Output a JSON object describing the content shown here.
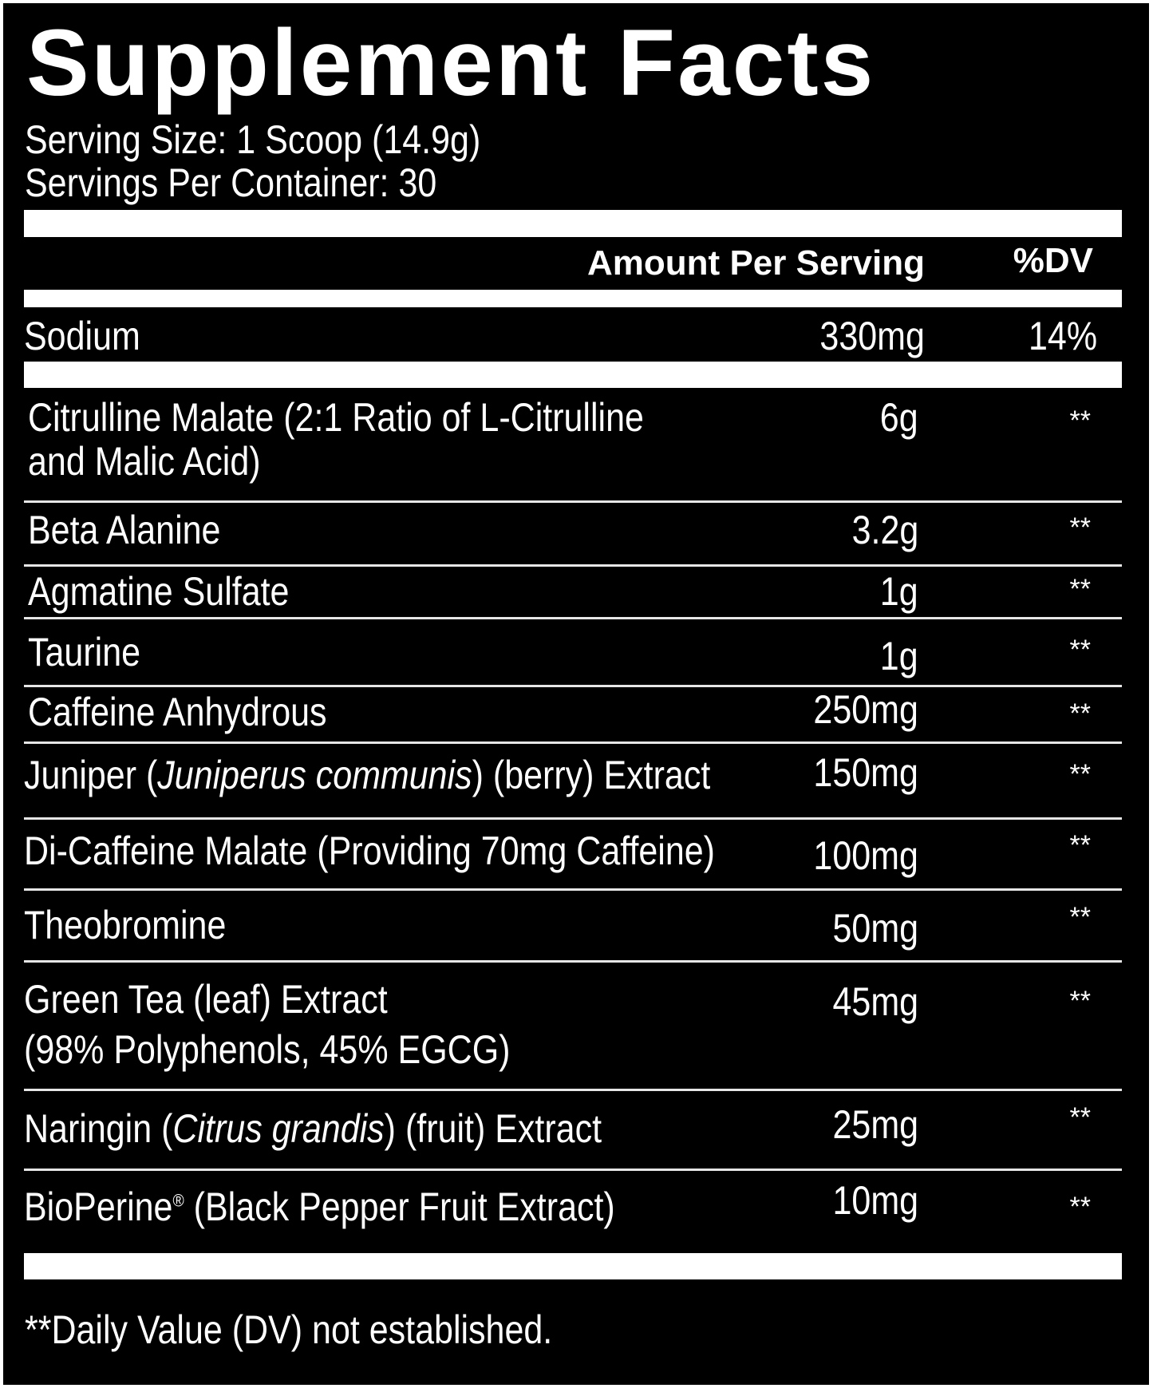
{
  "title": "Supplement Facts",
  "serving_size": "Serving Size: 1 Scoop (14.9g)",
  "servings_per_container": "Servings Per Container: 30",
  "header": {
    "amount": "Amount Per Serving",
    "dv": "%DV"
  },
  "sodium": {
    "name": "Sodium",
    "amount": "330mg",
    "dv": "14%"
  },
  "ingredients": [
    {
      "line1": "Citrulline Malate (2:1 Ratio of L-Citrulline",
      "line2": "and Malic Acid)",
      "amount": "6g",
      "dv": "**"
    },
    {
      "name": "Beta Alanine",
      "amount": "3.2g",
      "dv": "**"
    },
    {
      "name": "Agmatine Sulfate",
      "amount": "1g",
      "dv": "**"
    },
    {
      "name": "Taurine",
      "amount": "1g",
      "dv": "**"
    },
    {
      "name": "Caffeine Anhydrous",
      "amount": "250mg",
      "dv": "**"
    },
    {
      "pre": "Juniper (",
      "italic": "Juniperus communis",
      "post": ") (berry) Extract",
      "amount": "150mg",
      "dv": "**"
    },
    {
      "name": "Di-Caffeine Malate (Providing 70mg Caffeine)",
      "amount": "100mg",
      "dv": "**"
    },
    {
      "name": "Theobromine",
      "amount": "50mg",
      "dv": "**"
    },
    {
      "line1": "Green Tea (leaf) Extract",
      "line2": "(98% Polyphenols, 45% EGCG)",
      "amount": "45mg",
      "dv": "**"
    },
    {
      "pre": "Naringin (",
      "italic": "Citrus grandis",
      "post": ") (fruit) Extract",
      "amount": "25mg",
      "dv": "**"
    },
    {
      "pre": "BioPerine",
      "sup": "®",
      "post": " (Black Pepper Fruit Extract)",
      "amount": "10mg",
      "dv": "**"
    }
  ],
  "footnote": "**Daily Value (DV) not established."
}
